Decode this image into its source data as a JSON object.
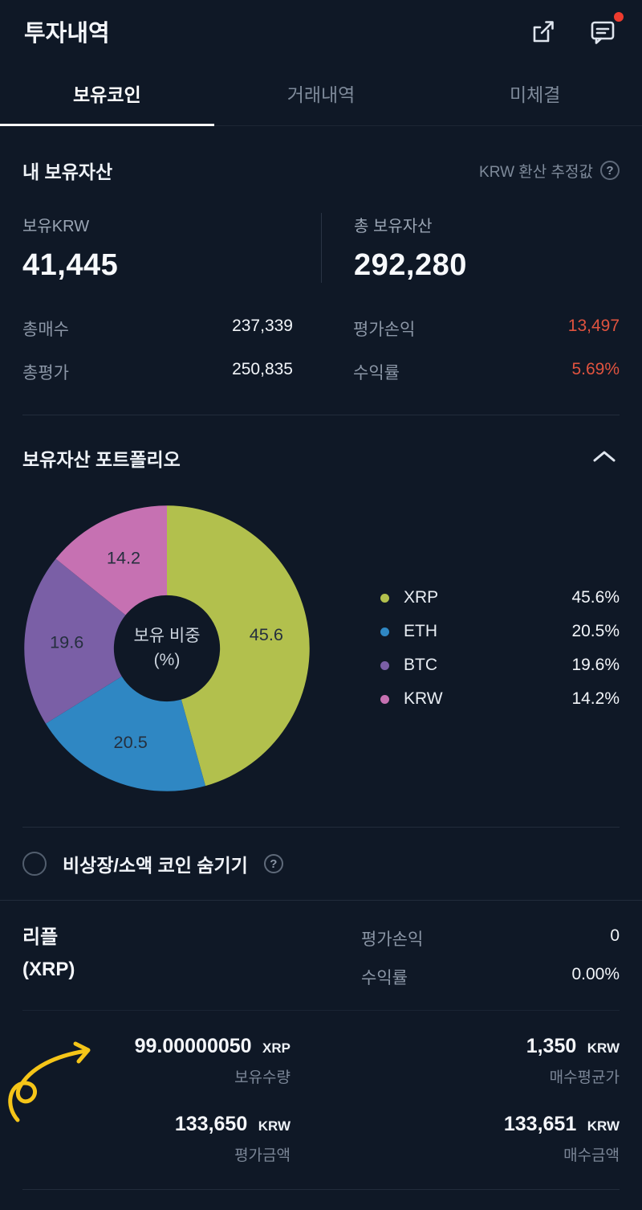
{
  "colors": {
    "profit": "#e0533f",
    "notification_dot": "#ee3b2e",
    "annotation_arrow": "#f5c518"
  },
  "header": {
    "title": "투자내역"
  },
  "tabs": [
    {
      "label": "보유코인",
      "active": true
    },
    {
      "label": "거래내역",
      "active": false
    },
    {
      "label": "미체결",
      "active": false
    }
  ],
  "assets": {
    "title": "내 보유자산",
    "note": "KRW 환산 추정값",
    "hold_krw": {
      "label": "보유KRW",
      "value": "41,445"
    },
    "total": {
      "label": "총 보유자산",
      "value": "292,280"
    },
    "total_buy": {
      "label": "총매수",
      "value": "237,339"
    },
    "total_eval": {
      "label": "총평가",
      "value": "250,835"
    },
    "pnl": {
      "label": "평가손익",
      "value": "13,497"
    },
    "yield": {
      "label": "수익률",
      "value": "5.69%"
    }
  },
  "portfolio": {
    "title": "보유자산 포트폴리오",
    "center_label_lines": [
      "보유 비중",
      "(%)"
    ]
  },
  "chart_data": {
    "type": "pie",
    "title": "보유자산 포트폴리오",
    "center_label": "보유 비중 (%)",
    "unit": "%",
    "labels": "inside",
    "legend_position": "right",
    "series": [
      {
        "name": "XRP",
        "value": 45.6,
        "color": "#b2c04d"
      },
      {
        "name": "ETH",
        "value": 20.5,
        "color": "#2f87c3"
      },
      {
        "name": "BTC",
        "value": 19.6,
        "color": "#7a5fa6"
      },
      {
        "name": "KRW",
        "value": 14.2,
        "color": "#c671b2"
      }
    ]
  },
  "hide_toggle": {
    "label": "비상장/소액 코인 숨기기",
    "checked": false
  },
  "coin": {
    "name": "리플",
    "symbol": "(XRP)",
    "pnl": {
      "label": "평가손익",
      "value": "0"
    },
    "yield": {
      "label": "수익률",
      "value": "0.00%"
    },
    "holdings": {
      "value": "99.00000050",
      "unit": "XRP",
      "label": "보유수량"
    },
    "avg_buy_price": {
      "value": "1,350",
      "unit": "KRW",
      "label": "매수평균가"
    },
    "eval_amount": {
      "value": "133,650",
      "unit": "KRW",
      "label": "평가금액"
    },
    "buy_amount": {
      "value": "133,651",
      "unit": "KRW",
      "label": "매수금액"
    }
  }
}
